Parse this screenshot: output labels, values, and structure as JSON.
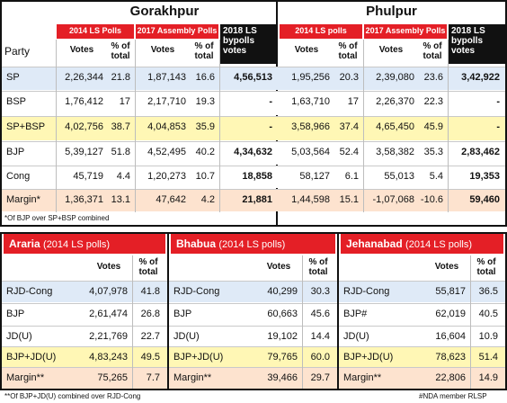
{
  "party_label": "Party",
  "gorakhpur": {
    "title": "Gorakhpur",
    "col2014": "2014 LS Polls",
    "col2017": "2017 Assembly Polls",
    "col2018": "2018 LS bypolls votes",
    "votes": "Votes",
    "pct": "% of total",
    "rows": [
      {
        "party": "SP",
        "v14": "2,26,344",
        "p14": "21.8",
        "v17": "1,87,143",
        "p17": "16.6",
        "v18": "4,56,513"
      },
      {
        "party": "BSP",
        "v14": "1,76,412",
        "p14": "17",
        "v17": "2,17,710",
        "p17": "19.3",
        "v18": "-"
      },
      {
        "party": "SP+BSP",
        "v14": "4,02,756",
        "p14": "38.7",
        "v17": "4,04,853",
        "p17": "35.9",
        "v18": "-"
      },
      {
        "party": "BJP",
        "v14": "5,39,127",
        "p14": "51.8",
        "v17": "4,52,495",
        "p17": "40.2",
        "v18": "4,34,632"
      },
      {
        "party": "Cong",
        "v14": "45,719",
        "p14": "4.4",
        "v17": "1,20,273",
        "p17": "10.7",
        "v18": "18,858"
      },
      {
        "party": "Margin*",
        "v14": "1,36,371",
        "p14": "13.1",
        "v17": "47,642",
        "p17": "4.2",
        "v18": "21,881"
      }
    ],
    "footnote": "*Of BJP over SP+BSP combined"
  },
  "phulpur": {
    "title": "Phulpur",
    "col2014": "2014 LS polls",
    "col2017": "2017 Assembly Polls",
    "col2018": "2018 LS bypolls votes",
    "votes": "Votes",
    "pct": "% of total",
    "rows": [
      {
        "v14": "1,95,256",
        "p14": "20.3",
        "v17": "2,39,080",
        "p17": "23.6",
        "v18": "3,42,922"
      },
      {
        "v14": "1,63,710",
        "p14": "17",
        "v17": "2,26,370",
        "p17": "22.3",
        "v18": "-"
      },
      {
        "v14": "3,58,966",
        "p14": "37.4",
        "v17": "4,65,450",
        "p17": "45.9",
        "v18": "-"
      },
      {
        "v14": "5,03,564",
        "p14": "52.4",
        "v17": "3,58,382",
        "p17": "35.3",
        "v18": "2,83,462"
      },
      {
        "v14": "58,127",
        "p14": "6.1",
        "v17": "55,013",
        "p17": "5.4",
        "v18": "19,353"
      },
      {
        "v14": "1,44,598",
        "p14": "15.1",
        "v17": "-1,07,068",
        "p17": "-10.6",
        "v18": "59,460"
      }
    ]
  },
  "bottom": [
    {
      "title": "Araria",
      "subtitle": "(2014 LS polls)",
      "votes": "Votes",
      "pct": "% of total",
      "rows": [
        {
          "party": "RJD-Cong",
          "v": "4,07,978",
          "p": "41.8"
        },
        {
          "party": "BJP",
          "v": "2,61,474",
          "p": "26.8"
        },
        {
          "party": "JD(U)",
          "v": "2,21,769",
          "p": "22.7"
        },
        {
          "party": "BJP+JD(U)",
          "v": "4,83,243",
          "p": "49.5"
        },
        {
          "party": "Margin**",
          "v": "75,265",
          "p": "7.7"
        }
      ]
    },
    {
      "title": "Bhabua",
      "subtitle": "(2014 LS polls)",
      "votes": "Votes",
      "pct": "% of total",
      "rows": [
        {
          "party": "RJD-Cong",
          "v": "40,299",
          "p": "30.3"
        },
        {
          "party": "BJP",
          "v": "60,663",
          "p": "45.6"
        },
        {
          "party": "JD(U)",
          "v": "19,102",
          "p": "14.4"
        },
        {
          "party": "BJP+JD(U)",
          "v": "79,765",
          "p": "60.0"
        },
        {
          "party": "Margin**",
          "v": "39,466",
          "p": "29.7"
        }
      ]
    },
    {
      "title": "Jehanabad",
      "subtitle": "(2014 LS polls)",
      "votes": "Votes",
      "pct": "% of total",
      "rows": [
        {
          "party": "RJD-Cong",
          "v": "55,817",
          "p": "36.5"
        },
        {
          "party": "BJP#",
          "v": "62,019",
          "p": "40.5"
        },
        {
          "party": "JD(U)",
          "v": "16,604",
          "p": "10.9"
        },
        {
          "party": "BJP+JD(U)",
          "v": "78,623",
          "p": "51.4"
        },
        {
          "party": "Margin**",
          "v": "22,806",
          "p": "14.9"
        }
      ]
    }
  ],
  "footnote_bottom_left": "**Of BJP+JD(U) combined over RJD-Cong",
  "footnote_bottom_right": "#NDA member RLSP",
  "colors": {
    "red": "#e41f26",
    "blue_row": "#dfeaf7",
    "yellow_row": "#fff7b5",
    "peach_row": "#fde3cf"
  }
}
